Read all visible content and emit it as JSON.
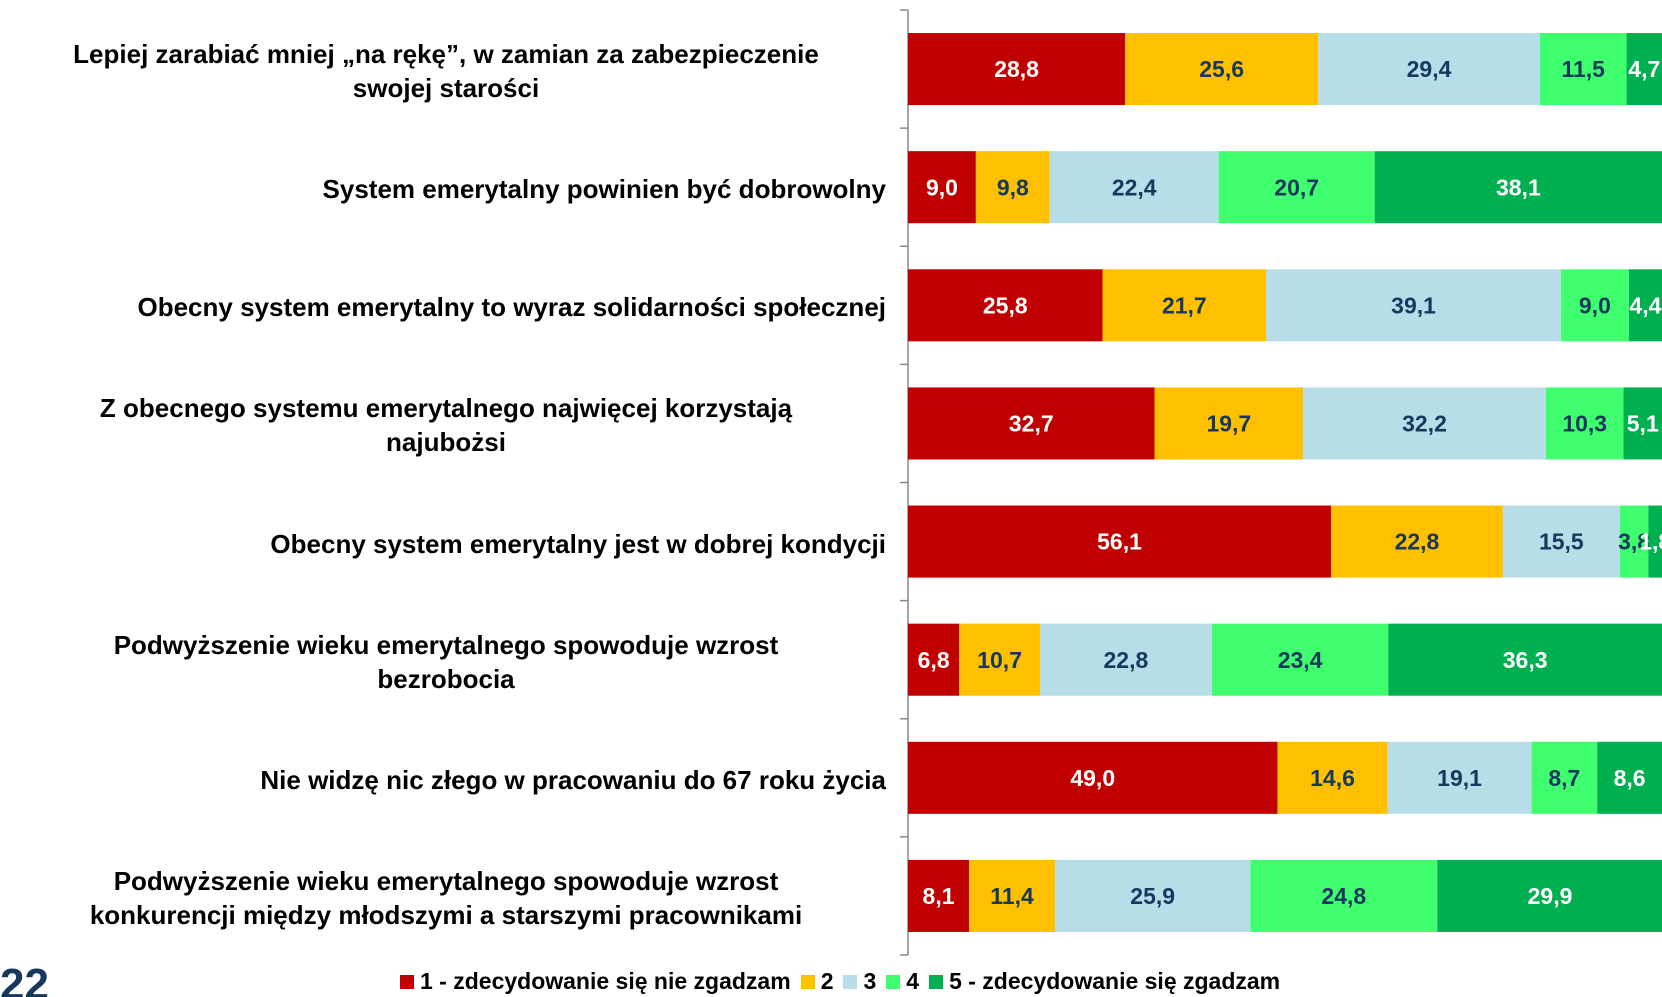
{
  "page_number": "22",
  "chart_data": {
    "type": "stacked-bar-horizontal",
    "categories": [
      "Lepiej zarabiać mniej „na rękę”, w zamian za zabezpieczenie\nswojej starości",
      "System emerytalny powinien być dobrowolny",
      "Obecny system emerytalny to wyraz solidarności społecznej",
      "Z obecnego systemu emerytalnego najwięcej korzystają\nnajubożsi",
      "Obecny system emerytalny jest w dobrej kondycji",
      "Podwyższenie wieku emerytalnego spowoduje wzrost\nbezrobocia",
      "Nie widzę nic złego w pracowaniu do 67 roku życia",
      "Podwyższenie wieku emerytalnego spowoduje wzrost\nkonkurencji między młodszymi a starszymi pracownikami"
    ],
    "xlim": [
      0,
      100
    ],
    "series": [
      {
        "name": "1 - zdecydowanie się nie zgadzam",
        "color": "#c00000",
        "label_color": "#ffffff",
        "values": [
          28.8,
          9.0,
          25.8,
          32.7,
          56.1,
          6.8,
          49.0,
          8.1
        ],
        "value_labels": [
          "28,8",
          "9,0",
          "25,8",
          "32,7",
          "56,1",
          "6,8",
          "49,0",
          "8,1"
        ]
      },
      {
        "name": "2",
        "color": "#ffc000",
        "label_color": "#17375e",
        "values": [
          25.6,
          9.8,
          21.7,
          19.7,
          22.8,
          10.7,
          14.6,
          11.4
        ],
        "value_labels": [
          "25,6",
          "9,8",
          "21,7",
          "19,7",
          "22,8",
          "10,7",
          "14,6",
          "11,4"
        ]
      },
      {
        "name": "3",
        "color": "#b7dde8",
        "label_color": "#17375e",
        "values": [
          29.4,
          22.4,
          39.1,
          32.2,
          15.5,
          22.8,
          19.1,
          25.9
        ],
        "value_labels": [
          "29,4",
          "22,4",
          "39,1",
          "32,2",
          "15,5",
          "22,8",
          "19,1",
          "25,9"
        ]
      },
      {
        "name": "4",
        "color": "#40ff6e",
        "label_color": "#17375e",
        "values": [
          11.5,
          20.7,
          9.0,
          10.3,
          3.8,
          23.4,
          8.7,
          24.8
        ],
        "value_labels": [
          "11,5",
          "20,7",
          "9,0",
          "10,3",
          "3,8",
          "23,4",
          "8,7",
          "24,8"
        ]
      },
      {
        "name": "5 - zdecydowanie się zgadzam",
        "color": "#00b050",
        "label_color": "#ffffff",
        "values": [
          4.7,
          38.1,
          4.4,
          5.1,
          1.8,
          36.3,
          8.6,
          29.9
        ],
        "value_labels": [
          "4,7",
          "38,1",
          "4,4",
          "5,1",
          "1,8",
          "36,3",
          "8,6",
          "29,9"
        ]
      }
    ]
  }
}
